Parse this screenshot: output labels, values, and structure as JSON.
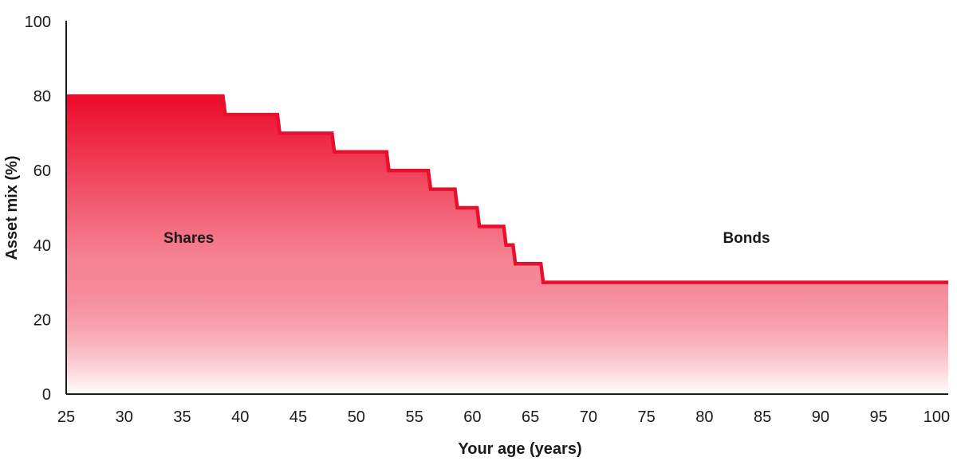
{
  "chart_data": {
    "type": "area",
    "xlabel": "Your age (years)",
    "ylabel": "Asset mix (%)",
    "xlim": [
      25,
      101
    ],
    "ylim": [
      0,
      100
    ],
    "x_ticks": [
      25,
      30,
      35,
      40,
      45,
      50,
      55,
      60,
      65,
      70,
      75,
      80,
      85,
      90,
      95,
      100
    ],
    "y_ticks": [
      0,
      20,
      40,
      60,
      80,
      100
    ],
    "grid": false,
    "colors": {
      "line": "#e8112d",
      "fill_top": "#ec0a2a",
      "fill_bottom": "#ffffff",
      "axis": "#1a1a1a"
    },
    "regions": {
      "below": "Shares",
      "above": "Bonds"
    },
    "series": [
      {
        "values_description_free": true,
        "x": [
          25,
          38.5,
          38.7,
          43.2,
          43.4,
          47.9,
          48.1,
          52.6,
          52.8,
          56.2,
          56.4,
          58.5,
          58.7,
          60.4,
          60.6,
          62.7,
          62.9,
          63.5,
          63.7,
          65.9,
          66.1,
          101
        ],
        "y": [
          80,
          80,
          75,
          75,
          70,
          70,
          65,
          65,
          60,
          60,
          55,
          55,
          50,
          50,
          45,
          45,
          40,
          40,
          35,
          35,
          30,
          30
        ]
      }
    ]
  }
}
